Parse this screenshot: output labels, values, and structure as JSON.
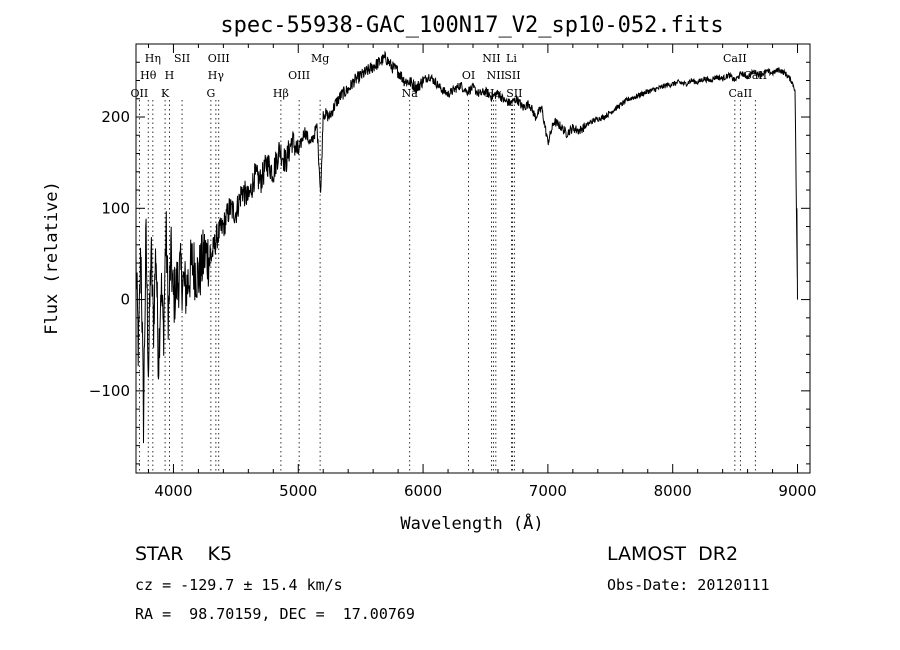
{
  "chart_data": {
    "type": "line",
    "title": "spec-55938-GAC_100N17_V2_sp10-052.fits",
    "xlabel": "Wavelength (Å)",
    "ylabel": "Flux (relative)",
    "xlim": [
      3700,
      9100
    ],
    "ylim": [
      -190,
      280
    ],
    "xticks": [
      4000,
      5000,
      6000,
      7000,
      8000,
      9000
    ],
    "yticks": [
      -100,
      0,
      100,
      200
    ],
    "grid": false,
    "series": [
      {
        "x": [
          3700,
          3720,
          3740,
          3760,
          3780,
          3800,
          3820,
          3840,
          3860,
          3880,
          3900,
          3920,
          3940,
          3960,
          3980,
          4000,
          4050,
          4100,
          4150,
          4200,
          4250,
          4300,
          4350,
          4400,
          4450,
          4500,
          4550,
          4600,
          4650,
          4700,
          4750,
          4800,
          4850,
          4900,
          4950,
          5000,
          5050,
          5100,
          5150,
          5180,
          5200,
          5250,
          5300,
          5350,
          5400,
          5450,
          5500,
          5550,
          5600,
          5650,
          5700,
          5750,
          5800,
          5850,
          5900,
          5950,
          6000,
          6050,
          6100,
          6150,
          6200,
          6250,
          6300,
          6350,
          6400,
          6450,
          6500,
          6550,
          6600,
          6650,
          6700,
          6750,
          6800,
          6850,
          6900,
          6950,
          7000,
          7050,
          7100,
          7150,
          7200,
          7250,
          7300,
          7350,
          7400,
          7450,
          7500,
          7550,
          7600,
          7650,
          7700,
          7750,
          7800,
          7850,
          7900,
          7950,
          8000,
          8050,
          8100,
          8150,
          8200,
          8250,
          8300,
          8350,
          8400,
          8450,
          8500,
          8550,
          8600,
          8650,
          8700,
          8750,
          8800,
          8850,
          8900,
          8950,
          8980,
          9000
        ],
        "y": [
          40,
          -60,
          60,
          -130,
          70,
          -80,
          55,
          -30,
          60,
          -70,
          20,
          -40,
          80,
          -20,
          50,
          0,
          30,
          10,
          40,
          25,
          50,
          45,
          70,
          80,
          100,
          95,
          120,
          110,
          135,
          130,
          150,
          140,
          165,
          150,
          175,
          160,
          185,
          170,
          190,
          115,
          205,
          200,
          215,
          225,
          230,
          240,
          245,
          250,
          255,
          260,
          265,
          255,
          250,
          240,
          238,
          232,
          240,
          245,
          238,
          230,
          225,
          230,
          235,
          228,
          232,
          225,
          228,
          222,
          226,
          218,
          215,
          220,
          210,
          215,
          200,
          210,
          172,
          195,
          190,
          182,
          188,
          185,
          190,
          195,
          198,
          200,
          205,
          210,
          215,
          220,
          222,
          225,
          228,
          230,
          232,
          235,
          236,
          238,
          236,
          240,
          238,
          242,
          240,
          244,
          242,
          246,
          240,
          248,
          244,
          250,
          246,
          250,
          248,
          252,
          248,
          240,
          230,
          0
        ]
      }
    ],
    "line_labels": [
      {
        "text": "Hη",
        "x": 3835,
        "row": 1
      },
      {
        "text": "SII",
        "x": 4069,
        "row": 1
      },
      {
        "text": "OIII",
        "x": 4363,
        "row": 1
      },
      {
        "text": "Mg",
        "x": 5175,
        "row": 1
      },
      {
        "text": "NII",
        "x": 6548,
        "row": 1
      },
      {
        "text": "Li",
        "x": 6708,
        "row": 1
      },
      {
        "text": "CaII",
        "x": 8498,
        "row": 1
      },
      {
        "text": "Hθ",
        "x": 3798,
        "row": 2
      },
      {
        "text": "H",
        "x": 3968,
        "row": 2
      },
      {
        "text": "Hγ",
        "x": 4340,
        "row": 2
      },
      {
        "text": "OIII",
        "x": 5007,
        "row": 2
      },
      {
        "text": "OI",
        "x": 6364,
        "row": 2
      },
      {
        "text": "NII",
        "x": 6583,
        "row": 2
      },
      {
        "text": "SII",
        "x": 6716,
        "row": 2
      },
      {
        "text": "CaII",
        "x": 8662,
        "row": 2
      },
      {
        "text": "OII",
        "x": 3727,
        "row": 3
      },
      {
        "text": "K",
        "x": 3933,
        "row": 3
      },
      {
        "text": "G",
        "x": 4300,
        "row": 3
      },
      {
        "text": "Hβ",
        "x": 4861,
        "row": 3
      },
      {
        "text": "Na",
        "x": 5893,
        "row": 3
      },
      {
        "text": "Hα",
        "x": 6563,
        "row": 3
      },
      {
        "text": "SII",
        "x": 6731,
        "row": 3
      },
      {
        "text": "CaII",
        "x": 8542,
        "row": 3
      }
    ],
    "line_markers": [
      3727,
      3798,
      3835,
      3933,
      3968,
      4069,
      4300,
      4340,
      4363,
      4861,
      5007,
      5175,
      5893,
      6364,
      6548,
      6563,
      6583,
      6708,
      6716,
      6731,
      8498,
      8542,
      8662
    ]
  },
  "info": {
    "object": "STAR    K5",
    "survey": "LAMOST  DR2",
    "cz": "cz = -129.7 ± 15.4 km/s",
    "obsdate": "Obs-Date: 20120111",
    "coords": "RA =  98.70159, DEC =  17.00769"
  }
}
